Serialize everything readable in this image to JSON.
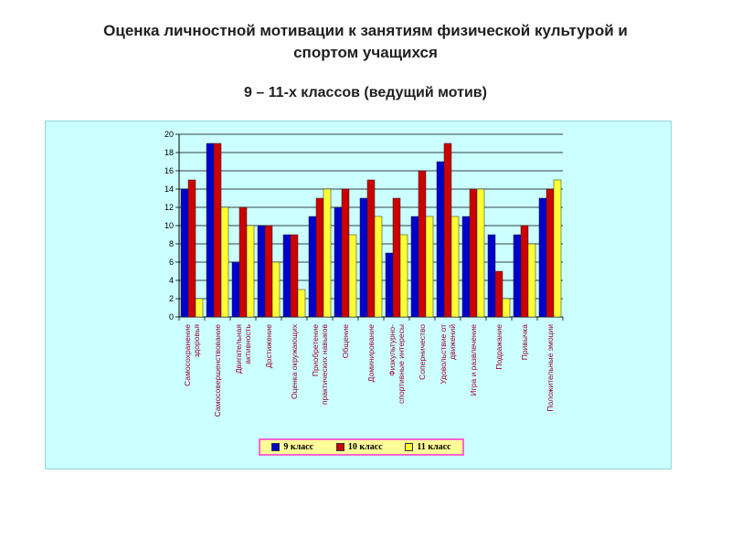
{
  "header": {
    "title_line1": "Оценка личностной мотивации к занятиям физической культурой и",
    "title_line2": "спортом учащихся",
    "subtitle": "9 – 11-х классов (ведущий мотив)"
  },
  "colors": {
    "plot_background": "#ccffff",
    "grid": "#000000",
    "category_label": "#990033",
    "legend_background": "#ffff99",
    "legend_border": "#ff66cc"
  },
  "chart_data": {
    "type": "bar",
    "title": "",
    "xlabel": "",
    "ylabel": "",
    "ylim": [
      0,
      20
    ],
    "yticks": [
      0,
      2,
      4,
      6,
      8,
      10,
      12,
      14,
      16,
      18,
      20
    ],
    "grid": true,
    "legend_position": "bottom",
    "categories": [
      [
        "Самосохранение",
        "здоровья"
      ],
      [
        "Самосовершенствование"
      ],
      [
        "Двигательная",
        "активность"
      ],
      [
        "Достижение"
      ],
      [
        "Оценка окружающих"
      ],
      [
        "Приобретение",
        "практических навыков"
      ],
      [
        "Общение"
      ],
      [
        "Доминирование"
      ],
      [
        "Физкультурно-",
        "спортивные интересы"
      ],
      [
        "Соперничество"
      ],
      [
        "Удовольствие от",
        "движений"
      ],
      [
        "Игра и развлечение"
      ],
      [
        "Подражание"
      ],
      [
        "Привычка"
      ],
      [
        "Положительные эмоции"
      ]
    ],
    "series": [
      {
        "name": "9 класс",
        "color": "#0000cc",
        "values": [
          14,
          19,
          6,
          10,
          9,
          11,
          12,
          13,
          7,
          11,
          17,
          11,
          9,
          9,
          13
        ]
      },
      {
        "name": "10 класс",
        "color": "#cc0000",
        "values": [
          15,
          19,
          12,
          10,
          9,
          13,
          14,
          15,
          13,
          16,
          19,
          14,
          5,
          10,
          14
        ]
      },
      {
        "name": "11 класс",
        "color": "#ffff33",
        "values": [
          2,
          12,
          10,
          6,
          3,
          14,
          9,
          11,
          9,
          11,
          11,
          14,
          2,
          8,
          15
        ]
      }
    ]
  }
}
